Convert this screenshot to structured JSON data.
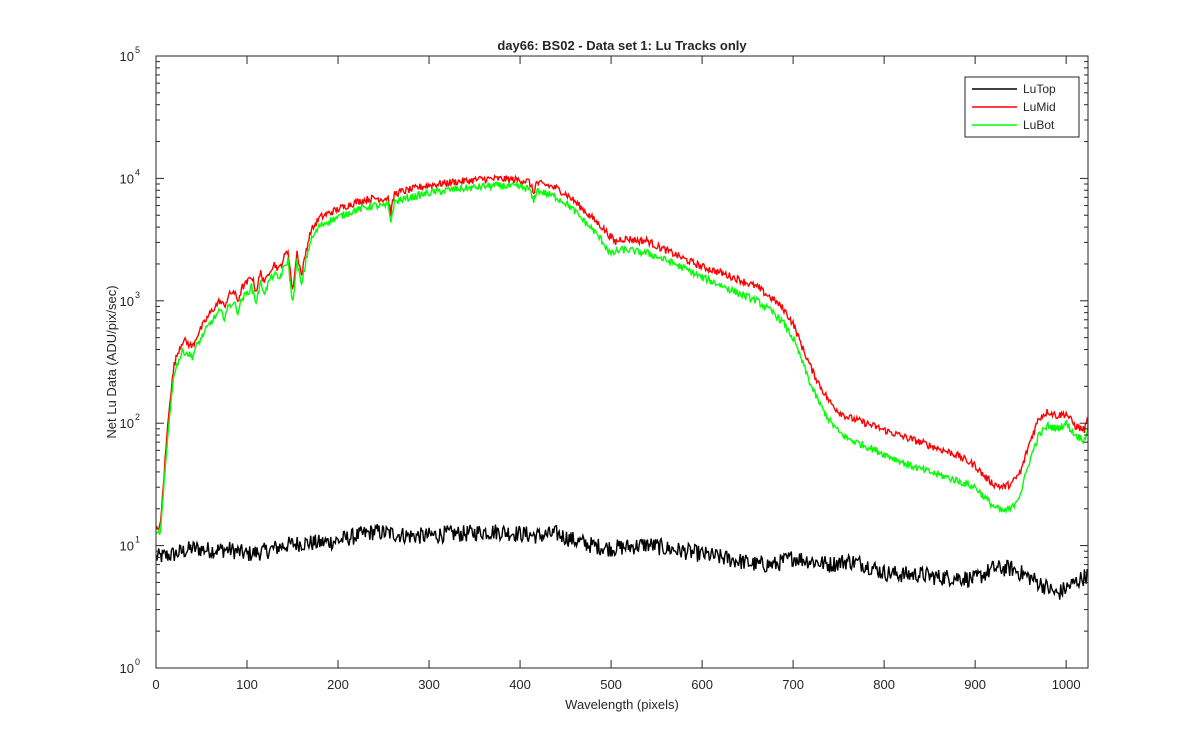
{
  "chart_data": {
    "type": "line",
    "title": "day66: BS02 - Data set 1: Lu Tracks only",
    "xlabel": "Wavelength (pixels)",
    "ylabel": "Net Lu Data (ADU/pix/sec)",
    "yscale": "log",
    "xlim": [
      0,
      1024
    ],
    "ylim": [
      1,
      100000
    ],
    "xticks": [
      0,
      100,
      200,
      300,
      400,
      500,
      600,
      700,
      800,
      900,
      1000
    ],
    "xtick_labels": [
      "0",
      "100",
      "200",
      "300",
      "400",
      "500",
      "600",
      "700",
      "800",
      "900",
      "1000"
    ],
    "yticks": [
      {
        "value": 1,
        "base": "10",
        "exp": "0"
      },
      {
        "value": 10,
        "base": "10",
        "exp": "1"
      },
      {
        "value": 100,
        "base": "10",
        "exp": "2"
      },
      {
        "value": 1000,
        "base": "10",
        "exp": "3"
      },
      {
        "value": 10000,
        "base": "10",
        "exp": "4"
      },
      {
        "value": 100000,
        "base": "10",
        "exp": "5"
      }
    ],
    "legend_position": "top-right",
    "grid": false,
    "series": [
      {
        "name": "LuTop",
        "color": "#000000",
        "noise": 0.14,
        "x": [
          0,
          20,
          40,
          60,
          80,
          100,
          120,
          140,
          160,
          180,
          200,
          220,
          240,
          260,
          280,
          300,
          320,
          340,
          360,
          380,
          400,
          420,
          440,
          460,
          480,
          500,
          520,
          540,
          560,
          580,
          600,
          620,
          640,
          660,
          680,
          700,
          720,
          740,
          760,
          780,
          800,
          820,
          840,
          860,
          880,
          900,
          920,
          940,
          960,
          980,
          990,
          1000,
          1024
        ],
        "y": [
          8,
          8.5,
          9.5,
          9.2,
          9.3,
          8.5,
          9,
          10,
          10.5,
          10.5,
          11,
          12,
          13,
          12.5,
          12,
          12,
          12.5,
          12.5,
          13,
          13,
          12.5,
          12,
          12.5,
          11,
          10,
          9.5,
          9.8,
          10.2,
          9.5,
          9,
          8.5,
          8,
          7.5,
          7,
          7,
          8,
          7.5,
          7,
          7.5,
          7,
          6,
          5.8,
          5.8,
          5.5,
          5.5,
          5.3,
          6.5,
          6.5,
          5.5,
          4.5,
          4,
          4.5,
          5.8
        ]
      },
      {
        "name": "LuMid",
        "color": "#ff0000",
        "noise": 0.06,
        "x": [
          0,
          5,
          10,
          15,
          20,
          25,
          30,
          35,
          40,
          45,
          50,
          55,
          60,
          65,
          70,
          75,
          80,
          85,
          90,
          95,
          100,
          105,
          110,
          115,
          120,
          125,
          130,
          135,
          140,
          145,
          150,
          155,
          160,
          165,
          170,
          180,
          190,
          200,
          210,
          220,
          230,
          240,
          250,
          255,
          258,
          262,
          270,
          280,
          290,
          300,
          310,
          320,
          330,
          340,
          350,
          360,
          370,
          380,
          390,
          400,
          410,
          415,
          418,
          422,
          430,
          440,
          450,
          460,
          470,
          480,
          490,
          500,
          505,
          510,
          520,
          530,
          540,
          550,
          560,
          570,
          580,
          600,
          620,
          640,
          660,
          680,
          690,
          700,
          710,
          720,
          730,
          740,
          750,
          760,
          780,
          800,
          820,
          840,
          860,
          880,
          900,
          910,
          920,
          930,
          940,
          950,
          960,
          970,
          980,
          990,
          1000,
          1010,
          1020,
          1024
        ],
        "y": [
          13,
          15,
          50,
          150,
          300,
          400,
          480,
          450,
          420,
          520,
          600,
          700,
          800,
          900,
          1000,
          900,
          1100,
          1200,
          1000,
          1300,
          1400,
          1600,
          1200,
          1700,
          1400,
          1800,
          2000,
          1800,
          2200,
          2600,
          1200,
          2500,
          1600,
          2600,
          3700,
          4800,
          5200,
          5600,
          6000,
          6400,
          6700,
          6900,
          6800,
          7000,
          5200,
          7500,
          7800,
          8100,
          8500,
          8800,
          9000,
          9200,
          9400,
          9500,
          9700,
          9900,
          9900,
          9900,
          9800,
          9700,
          9400,
          7600,
          9200,
          9000,
          8800,
          8300,
          7500,
          6500,
          5500,
          4700,
          4000,
          3300,
          3000,
          3200,
          3200,
          3100,
          3100,
          2800,
          2600,
          2400,
          2200,
          1900,
          1700,
          1500,
          1300,
          1000,
          850,
          650,
          420,
          280,
          200,
          150,
          125,
          112,
          100,
          88,
          78,
          70,
          62,
          55,
          45,
          37,
          32,
          30,
          32,
          40,
          70,
          110,
          125,
          115,
          120,
          95,
          88,
          110
        ]
      },
      {
        "name": "LuBot",
        "color": "#00ff00",
        "noise": 0.06,
        "x": [
          0,
          5,
          10,
          15,
          20,
          25,
          30,
          35,
          40,
          45,
          50,
          55,
          60,
          65,
          70,
          75,
          80,
          85,
          90,
          95,
          100,
          105,
          110,
          115,
          120,
          125,
          130,
          135,
          140,
          145,
          150,
          155,
          160,
          165,
          170,
          180,
          190,
          200,
          210,
          220,
          230,
          240,
          250,
          255,
          258,
          262,
          270,
          280,
          290,
          300,
          310,
          320,
          330,
          340,
          350,
          360,
          370,
          380,
          390,
          400,
          410,
          415,
          418,
          422,
          430,
          440,
          450,
          460,
          470,
          480,
          490,
          500,
          505,
          510,
          520,
          530,
          540,
          550,
          560,
          570,
          580,
          600,
          620,
          640,
          660,
          680,
          690,
          700,
          710,
          720,
          730,
          740,
          750,
          760,
          780,
          800,
          820,
          840,
          860,
          880,
          900,
          910,
          920,
          930,
          940,
          950,
          960,
          970,
          980,
          990,
          1000,
          1010,
          1020,
          1024
        ],
        "y": [
          12,
          13,
          40,
          120,
          260,
          330,
          390,
          370,
          350,
          430,
          500,
          580,
          660,
          740,
          820,
          740,
          900,
          980,
          820,
          1060,
          1150,
          1300,
          980,
          1400,
          1150,
          1500,
          1650,
          1500,
          1800,
          2150,
          950,
          2100,
          1300,
          2200,
          3100,
          4100,
          4500,
          4800,
          5200,
          5500,
          5800,
          6000,
          5900,
          6000,
          4500,
          6400,
          6700,
          7000,
          7300,
          7600,
          7800,
          8000,
          8200,
          8300,
          8400,
          8600,
          8700,
          8700,
          8600,
          8500,
          8200,
          6400,
          8000,
          7800,
          7500,
          7000,
          6300,
          5400,
          4500,
          3800,
          3100,
          2400,
          2500,
          2600,
          2600,
          2500,
          2450,
          2300,
          2150,
          2000,
          1850,
          1550,
          1350,
          1150,
          1000,
          780,
          650,
          490,
          320,
          200,
          140,
          105,
          85,
          75,
          65,
          56,
          48,
          42,
          38,
          34,
          30,
          25,
          21,
          19,
          20,
          27,
          50,
          80,
          95,
          90,
          100,
          80,
          73,
          95
        ]
      }
    ]
  }
}
